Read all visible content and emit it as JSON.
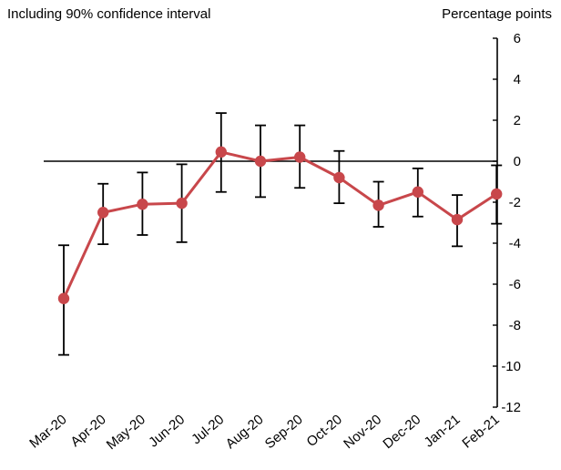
{
  "chart_data": {
    "type": "line",
    "subtitle": "Including 90% confidence interval",
    "unit_label": "Percentage points",
    "categories": [
      "Mar-20",
      "Apr-20",
      "May-20",
      "Jun-20",
      "Jul-20",
      "Aug-20",
      "Sep-20",
      "Oct-20",
      "Nov-20",
      "Dec-20",
      "Jan-21",
      "Feb-21"
    ],
    "series": [
      {
        "values": [
          -6.7,
          -2.5,
          -2.1,
          -2.05,
          0.45,
          0.0,
          0.2,
          -0.8,
          -2.15,
          -1.5,
          -2.85,
          -1.6
        ],
        "ci_upper": [
          -4.1,
          -1.1,
          -0.55,
          -0.15,
          2.35,
          1.75,
          1.75,
          0.5,
          -1.0,
          -0.35,
          -1.65,
          -0.2
        ],
        "ci_lower": [
          -9.45,
          -4.05,
          -3.6,
          -3.95,
          -1.5,
          -1.75,
          -1.3,
          -2.05,
          -3.2,
          -2.7,
          -4.15,
          -3.05
        ]
      }
    ],
    "ylim": [
      -12,
      6
    ],
    "yticks": [
      6,
      4,
      2,
      0,
      -2,
      -4,
      -6,
      -8,
      -10,
      -12
    ],
    "ytick_labels": [
      "6",
      "4",
      "2",
      "0",
      "-2",
      "-4",
      "-6",
      "-8",
      "-10",
      "-12"
    ],
    "y_axis_position": "right",
    "grid": false,
    "zero_line": true,
    "legend": "none",
    "colors": {
      "line": "#c8474b",
      "marker": "#c8474b",
      "error_bar": "#000000",
      "axis": "#000000"
    }
  }
}
